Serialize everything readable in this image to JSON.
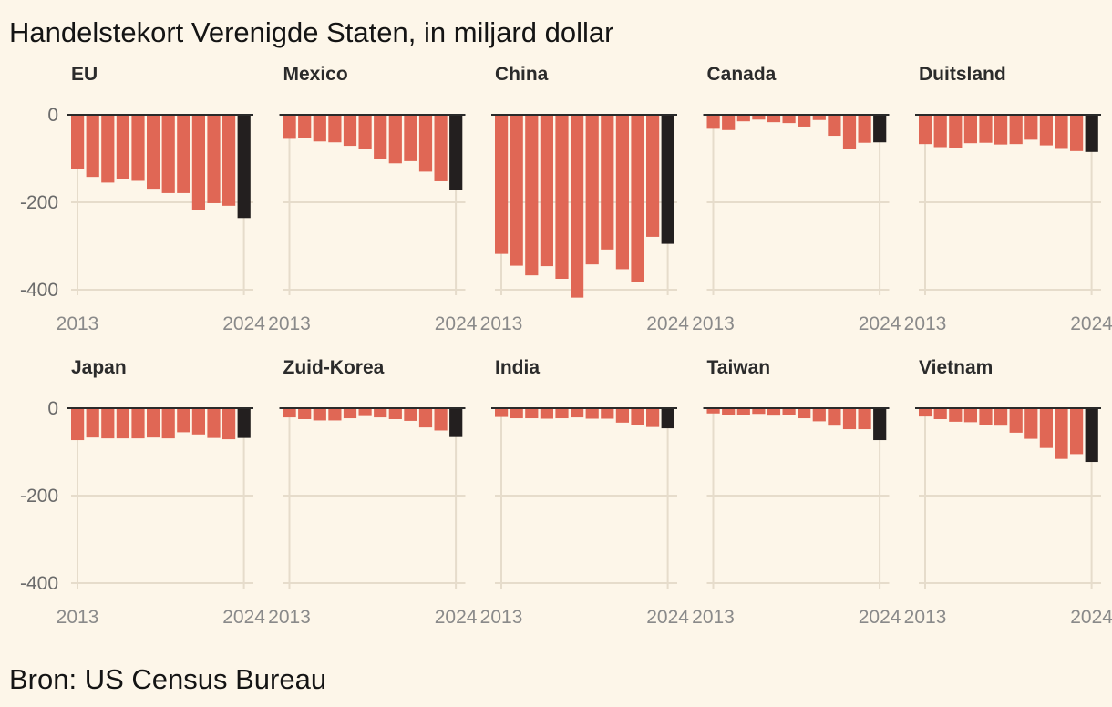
{
  "header": {
    "title": "Handelstekort Verenigde Staten, in miljard dollar"
  },
  "footer": {
    "source": "Bron: US Census Bureau"
  },
  "colors": {
    "bar": "#e06755",
    "highlight": "#231f1f",
    "background": "#fdf6e9"
  },
  "chart_data": {
    "type": "bar",
    "title": "Handelstekort Verenigde Staten, in miljard dollar",
    "ylim": [
      -400,
      0
    ],
    "y_ticks": [
      0,
      -200,
      -400
    ],
    "y_tick_labels": [
      "0",
      "-200",
      "-400"
    ],
    "x_tick_labels": [
      "2013",
      "2024"
    ],
    "categories": [
      "2013",
      "2014",
      "2015",
      "2016",
      "2017",
      "2018",
      "2019",
      "2020",
      "2021",
      "2022",
      "2023",
      "2024"
    ],
    "highlight_category": "2024",
    "series": [
      {
        "name": "EU",
        "values": [
          -125,
          -142,
          -155,
          -147,
          -151,
          -169,
          -179,
          -179,
          -218,
          -202,
          -208,
          -236
        ]
      },
      {
        "name": "Mexico",
        "values": [
          -55,
          -54,
          -61,
          -63,
          -71,
          -78,
          -101,
          -111,
          -106,
          -130,
          -152,
          -172
        ]
      },
      {
        "name": "China",
        "values": [
          -318,
          -345,
          -367,
          -346,
          -375,
          -418,
          -342,
          -308,
          -353,
          -382,
          -279,
          -295
        ]
      },
      {
        "name": "Canada",
        "values": [
          -32,
          -35,
          -15,
          -11,
          -17,
          -19,
          -27,
          -12,
          -48,
          -78,
          -64,
          -63
        ]
      },
      {
        "name": "Duitsland",
        "values": [
          -67,
          -74,
          -75,
          -65,
          -64,
          -68,
          -67,
          -57,
          -70,
          -76,
          -83,
          -85
        ]
      },
      {
        "name": "Japan",
        "values": [
          -73,
          -67,
          -69,
          -69,
          -69,
          -67,
          -69,
          -55,
          -60,
          -68,
          -71,
          -68
        ]
      },
      {
        "name": "Zuid-Korea",
        "values": [
          -21,
          -25,
          -28,
          -28,
          -23,
          -18,
          -21,
          -25,
          -29,
          -44,
          -51,
          -66
        ]
      },
      {
        "name": "India",
        "values": [
          -20,
          -23,
          -23,
          -24,
          -23,
          -21,
          -24,
          -24,
          -33,
          -38,
          -43,
          -46
        ]
      },
      {
        "name": "Taiwan",
        "values": [
          -12,
          -15,
          -15,
          -13,
          -17,
          -15,
          -23,
          -30,
          -40,
          -48,
          -48,
          -73
        ]
      },
      {
        "name": "Vietnam",
        "values": [
          -19,
          -25,
          -31,
          -32,
          -38,
          -40,
          -56,
          -70,
          -91,
          -116,
          -105,
          -123
        ]
      }
    ]
  }
}
